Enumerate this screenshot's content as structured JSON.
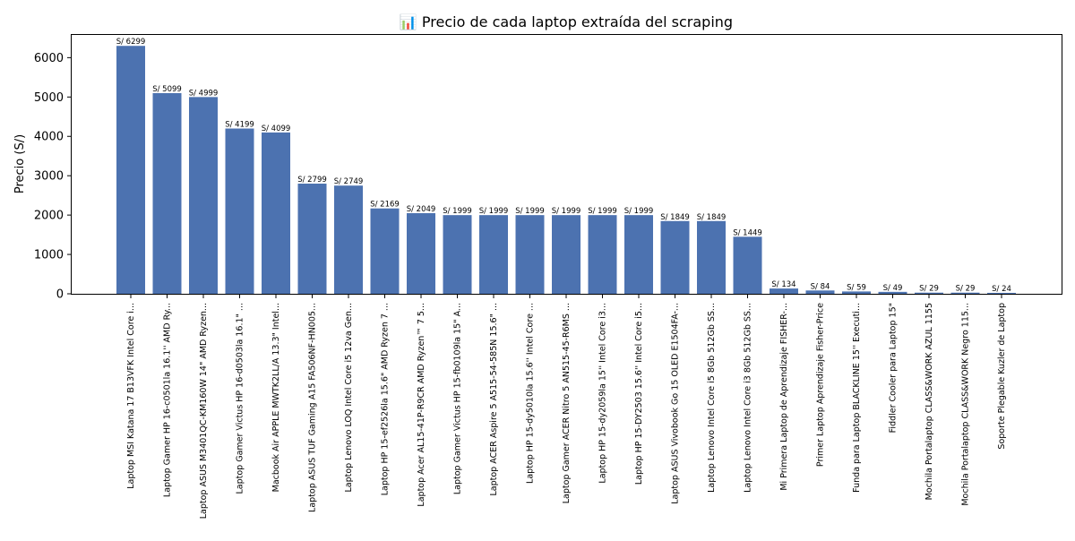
{
  "chart_data": {
    "type": "bar",
    "title": "📊 Precio de cada laptop extraída del scraping",
    "xlabel": "",
    "ylabel": "Precio (S/)",
    "ylim": [
      0,
      6600
    ],
    "yticks": [
      0,
      1000,
      2000,
      3000,
      4000,
      5000,
      6000
    ],
    "grid": false,
    "bar_color": "#4c72b0",
    "value_label_prefix": "S/ ",
    "categories": [
      "Laptop MSI Katana 17 B13VFK Intel Core i...",
      "Laptop Gamer HP 16-c0501la 16.1'' AMD Ry...",
      "Laptop ASUS M3401QC-KM160W 14\" AMD Ryzen...",
      "Laptop Gamer Victus HP 16-d0503la 16.1\" ...",
      "Macbook Air APPLE MWTK2LL/A 13.3\" Intel...",
      "Laptop ASUS TUF Gaming A15 FA506NF-HN005...",
      "Laptop Lenovo LOQ Intel Core i5 12va Gen...",
      "Laptop HP 15-ef2526la 15.6\" AMD Ryzen 7 ...",
      "Laptop Acer AL15-41P-R9CR AMD Ryzen™ 7 5...",
      "Laptop Gamer Victus HP 15-fb0109la 15\" A...",
      "Laptop ACER Aspire 5 A515-54-585N 15.6\" ...",
      "Laptop HP 15-dy5010la 15.6'' Intel Core ...",
      "Laptop Gamer ACER Nitro 5 AN515-45-R6MS ...",
      "Laptop HP 15-dy2059la 15'' Intel Core i3...",
      "Laptop HP 15-DY2503 15.6'' Intel Core i5...",
      "Laptop ASUS Vivobook Go 15 OLED E1504FA-...",
      "Laptop Lenovo Intel Core i5 8Gb 512Gb SS...",
      "Laptop Lenovo Intel Core i3 8Gb 512Gb SS...",
      "Mi Primera Laptop de Aprendizaje FISHER-...",
      "Primer Laptop Aprendizaje Fisher-Price",
      "Funda para Laptop BLACKLINE 15'' Executi...",
      "Fiddler Cooler para Laptop 15\"",
      "Mochila Portalaptop CLASS&WORK AZUL 1155",
      "Mochila Portalaptop CLASS&WORK Negro 115...",
      "Soporte Plegable Kuzler de Laptop"
    ],
    "values": [
      6299,
      5099,
      4999,
      4199,
      4099,
      2799,
      2749,
      2169,
      2049,
      1999,
      1999,
      1999,
      1999,
      1999,
      1999,
      1849,
      1849,
      1449,
      134,
      84,
      59,
      49,
      29,
      29,
      24
    ]
  }
}
